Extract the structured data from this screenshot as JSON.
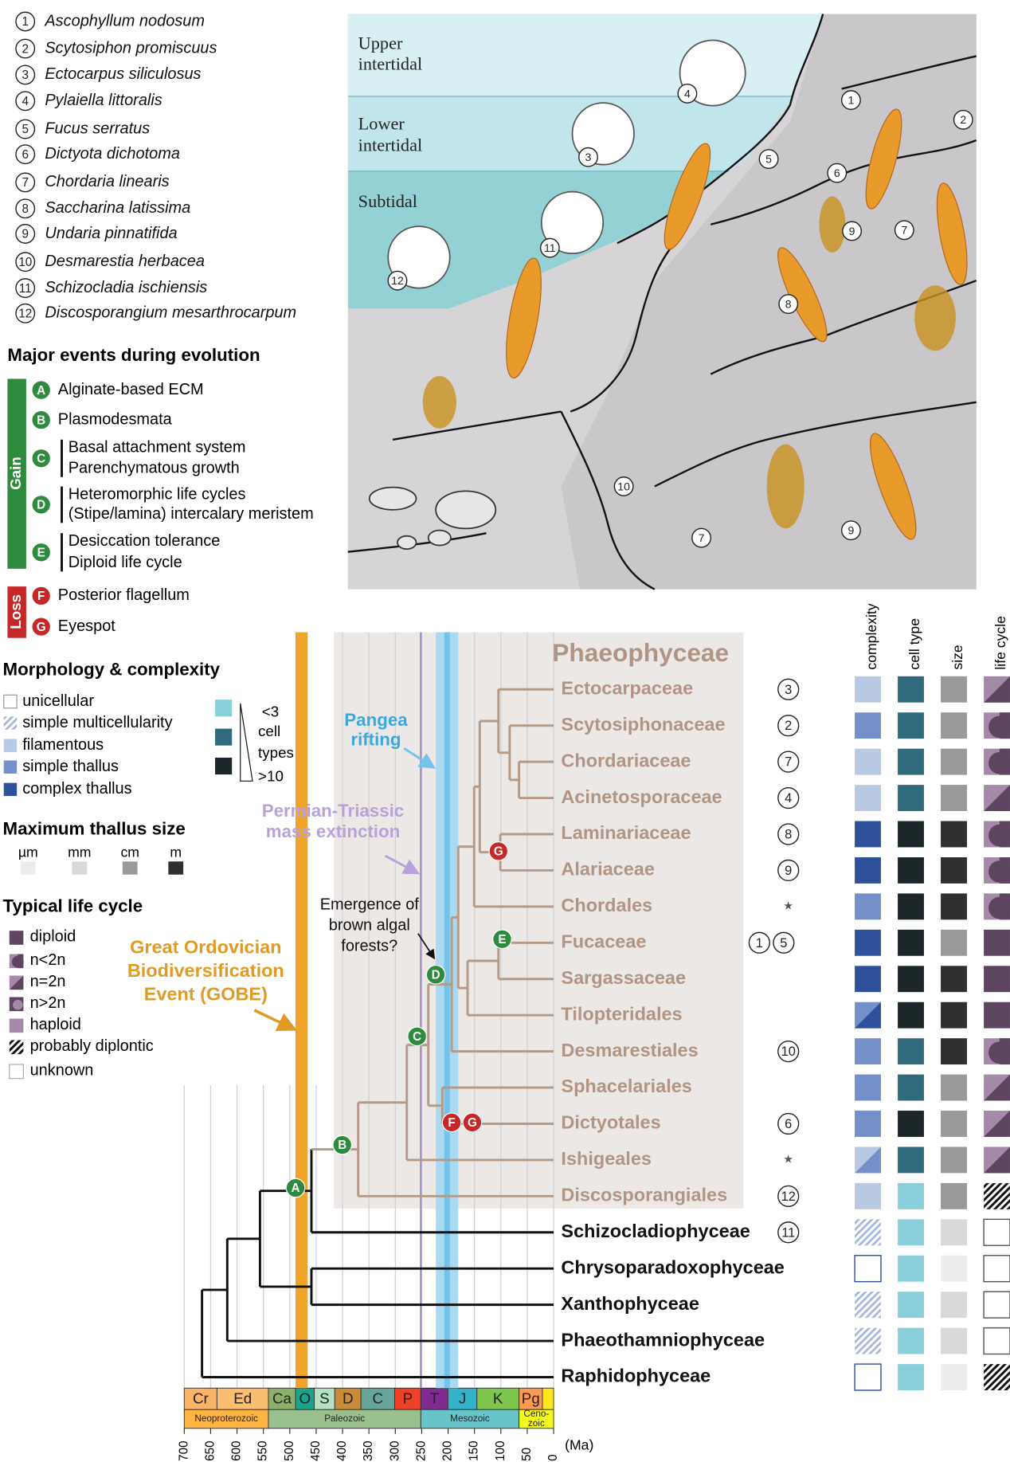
{
  "species": {
    "items": [
      {
        "num": "1",
        "name": "Ascophyllum nodosum"
      },
      {
        "num": "2",
        "name": "Scytosiphon promiscuus"
      },
      {
        "num": "3",
        "name": "Ectocarpus siliculosus"
      },
      {
        "num": "4",
        "name": "Pylaiella littoralis"
      },
      {
        "num": "5",
        "name": "Fucus serratus"
      },
      {
        "num": "6",
        "name": "Dictyota dichotoma"
      },
      {
        "num": "7",
        "name": "Chordaria linearis"
      },
      {
        "num": "8",
        "name": "Saccharina latissima"
      },
      {
        "num": "9",
        "name": "Undaria pinnatifida"
      },
      {
        "num": "10",
        "name": "Desmarestia herbacea"
      },
      {
        "num": "11",
        "name": "Schizocladia ischiensis"
      },
      {
        "num": "12",
        "name": "Discosporangium mesarthrocarpum"
      }
    ]
  },
  "events": {
    "title": "Major events during evolution",
    "gain_label": "Gain",
    "loss_label": "Loss",
    "items": [
      {
        "letter": "A",
        "lines": [
          "Alginate-based ECM"
        ]
      },
      {
        "letter": "B",
        "lines": [
          "Plasmodesmata"
        ]
      },
      {
        "letter": "C",
        "lines": [
          "Basal attachment system",
          "Parenchymatous growth"
        ]
      },
      {
        "letter": "D",
        "lines": [
          "Heteromorphic life cycles",
          "(Stipe/lamina) intercalary meristem"
        ]
      },
      {
        "letter": "E",
        "lines": [
          "Desiccation tolerance",
          "Diploid life cycle"
        ]
      },
      {
        "letter": "F",
        "lines": [
          "Posterior flagellum"
        ]
      },
      {
        "letter": "G",
        "lines": [
          "Eyespot"
        ]
      }
    ]
  },
  "morphology": {
    "title": "Morphology & complexity",
    "items": [
      "unicellular",
      "simple multicellularity",
      "filamentous",
      "simple thallus",
      "complex thallus"
    ]
  },
  "cell_types": {
    "labels": [
      "<3",
      "cell",
      "types",
      ">10"
    ]
  },
  "size": {
    "title": "Maximum thallus size",
    "items": [
      "µm",
      "mm",
      "cm",
      "m"
    ]
  },
  "life_cycle": {
    "title": "Typical life cycle",
    "items": [
      "diploid",
      "n<2n",
      "n=2n",
      "n>2n",
      "haploid",
      "probably diplontic",
      "unknown"
    ]
  },
  "scene": {
    "zones": [
      [
        "Upper",
        "intertidal"
      ],
      [
        "Lower",
        "intertidal"
      ],
      [
        "Subtidal"
      ]
    ],
    "markers": [
      "4",
      "1",
      "2",
      "3",
      "5",
      "6",
      "11",
      "9",
      "7",
      "12",
      "8",
      "10",
      "7",
      "9"
    ]
  },
  "annotations": {
    "gobe": [
      "Great Ordovician",
      "Biodiversification",
      "Event (GOBE)"
    ],
    "pangea": [
      "Pangea",
      "rifting"
    ],
    "permian": [
      "Permian-Triassic",
      "mass extinction"
    ],
    "forests": [
      "Emergence of",
      "brown algal",
      "forests?"
    ]
  },
  "tree": {
    "clade": "Phaeophyceae",
    "trait_headers": [
      "complexity",
      "cell type",
      "size",
      "life cycle"
    ],
    "taxa": [
      {
        "name": "Ectocarpaceae",
        "markers": [
          "3"
        ],
        "complexity": "filamentous",
        "cell_type": null,
        "size": "cm",
        "life_cycle": "n=2n"
      },
      {
        "name": "Scytosiphonaceae",
        "markers": [
          "2"
        ],
        "complexity": "simple thallus",
        "cell_type": null,
        "size": "cm",
        "life_cycle": "n<2n"
      },
      {
        "name": "Chordariaceae",
        "markers": [
          "7"
        ],
        "complexity": "filamentous",
        "cell_type": null,
        "size": "cm",
        "life_cycle": "n<2n"
      },
      {
        "name": "Acinetosporaceae",
        "markers": [
          "4"
        ],
        "complexity": "filamentous",
        "cell_type": null,
        "size": "cm",
        "life_cycle": "n=2n"
      },
      {
        "name": "Laminariaceae",
        "markers": [
          "8"
        ],
        "complexity": "complex thallus",
        "cell_type": ">10",
        "size": "m",
        "life_cycle": "n<2n"
      },
      {
        "name": "Alariaceae",
        "markers": [
          "9"
        ],
        "complexity": "complex thallus",
        "cell_type": ">10",
        "size": "m",
        "life_cycle": "n<2n"
      },
      {
        "name": "Chordales",
        "markers": [
          "★"
        ],
        "complexity": "simple thallus",
        "cell_type": ">10",
        "size": "m",
        "life_cycle": "n<2n"
      },
      {
        "name": "Fucaceae",
        "markers": [
          "1",
          "5"
        ],
        "complexity": "complex thallus",
        "cell_type": ">10",
        "size": "cm",
        "life_cycle": "diploid"
      },
      {
        "name": "Sargassaceae",
        "markers": [],
        "complexity": "complex thallus",
        "cell_type": ">10",
        "size": "m",
        "life_cycle": "diploid"
      },
      {
        "name": "Tilopteridales",
        "markers": [],
        "complexity": [
          "simple thallus",
          "complex thallus"
        ],
        "cell_type": ">10",
        "size": "m",
        "life_cycle": "diploid"
      },
      {
        "name": "Desmarestiales",
        "markers": [
          "10"
        ],
        "complexity": "simple thallus",
        "cell_type": null,
        "size": "m",
        "life_cycle": "n<2n"
      },
      {
        "name": "Sphacelariales",
        "markers": [],
        "complexity": "simple thallus",
        "cell_type": null,
        "size": "cm",
        "life_cycle": "n=2n"
      },
      {
        "name": "Dictyotales",
        "markers": [
          "6"
        ],
        "complexity": "simple thallus",
        "cell_type": ">10",
        "size": "cm",
        "life_cycle": "n=2n"
      },
      {
        "name": "Ishigeales",
        "markers": [
          "★"
        ],
        "complexity": [
          "filamentous",
          "simple thallus"
        ],
        "cell_type": null,
        "size": "cm",
        "life_cycle": "n=2n"
      },
      {
        "name": "Discosporangiales",
        "markers": [
          "12"
        ],
        "complexity": "filamentous",
        "cell_type": "<3",
        "size": "cm",
        "life_cycle": "probably diplontic"
      },
      {
        "name": "Schizocladiophyceae",
        "markers": [
          "11"
        ],
        "complexity": "simple multicellularity",
        "cell_type": "<3",
        "size": "mm",
        "life_cycle": "unknown"
      },
      {
        "name": "Chrysoparadoxophyceae",
        "markers": [],
        "complexity": "unicellular",
        "cell_type": "<3",
        "size": "µm",
        "life_cycle": "unknown"
      },
      {
        "name": "Xanthophyceae",
        "markers": [],
        "complexity": "simple multicellularity",
        "cell_type": "<3",
        "size": "mm",
        "life_cycle": "unknown"
      },
      {
        "name": "Phaeothamniophyceae",
        "markers": [],
        "complexity": "simple multicellularity",
        "cell_type": "<3",
        "size": "mm",
        "life_cycle": "unknown"
      },
      {
        "name": "Raphidophyceae",
        "markers": [],
        "complexity": "unicellular",
        "cell_type": "<3",
        "size": "µm",
        "life_cycle": "probably diplontic"
      }
    ]
  },
  "time": {
    "xlim": [
      700,
      0
    ],
    "ticks": [
      700,
      650,
      600,
      550,
      500,
      450,
      400,
      350,
      300,
      250,
      200,
      150,
      100,
      50,
      0
    ],
    "unit": "(Ma)",
    "periods": [
      "Cr",
      "Ed",
      "Ca",
      "O",
      "S",
      "D",
      "C",
      "P",
      "T",
      "J",
      "K",
      "Pg"
    ],
    "eras": [
      [
        "Neoproterozoic"
      ],
      [
        "Paleozoic"
      ],
      [
        "Mesozoic"
      ],
      [
        "Ceno-",
        "zoic"
      ]
    ]
  }
}
